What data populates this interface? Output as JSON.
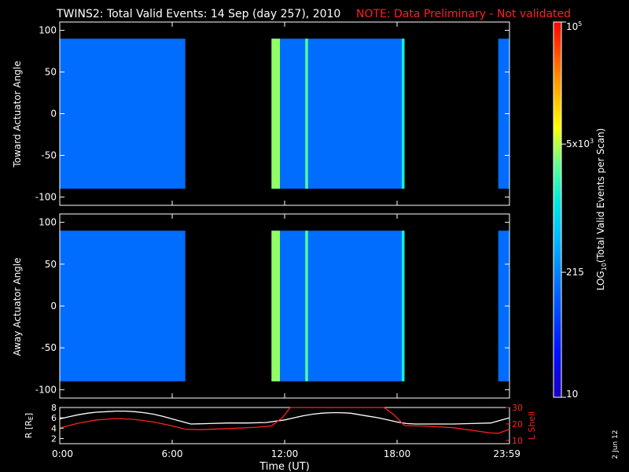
{
  "title": "TWINS2: Total Valid Events: 14 Sep (day 257), 2010",
  "note": "NOTE: Data Preliminary - Not validated",
  "datestamp": "2 Jun 12",
  "colors": {
    "note": "#ff2020",
    "white": "#ffffff",
    "lshell": "#ff2020",
    "background": "#000000"
  },
  "colorbar": {
    "label_pre": "LOG",
    "label_sub": "10",
    "label_post": "(Total Valid Events per Scan)",
    "ticks": [
      {
        "value": 10,
        "base": "10",
        "exp": ""
      },
      {
        "value": 215,
        "base": "215",
        "exp": ""
      },
      {
        "value": 5000,
        "base": "5x10",
        "exp": "3"
      },
      {
        "value": 100000,
        "base": "10",
        "exp": "5"
      }
    ],
    "range": [
      10,
      100000
    ],
    "scale": "log"
  },
  "chart_data": [
    {
      "type": "heatmap",
      "ylabel": "Toward Actuator Angle",
      "ylim": [
        -110,
        110
      ],
      "yticks": [
        "100",
        "50",
        "0",
        "-50",
        "-100"
      ],
      "ytick_values": [
        100,
        50,
        0,
        -50,
        -100
      ],
      "data_y_range": [
        -90,
        90
      ],
      "xlim": [
        0,
        24
      ],
      "data_blocks_hours": [
        [
          0.0,
          6.7
        ],
        [
          11.3,
          18.4
        ],
        [
          23.4,
          24.0
        ]
      ],
      "typical_value": 150,
      "highlights": [
        {
          "hours": [
            11.3,
            11.75
          ],
          "value": 4000
        },
        {
          "hours": [
            13.1,
            13.25
          ],
          "value": 2500
        },
        {
          "hours": [
            18.25,
            18.4
          ],
          "value": 1500
        }
      ]
    },
    {
      "type": "heatmap",
      "ylabel": "Away Actuator Angle",
      "ylim": [
        -110,
        110
      ],
      "yticks": [
        "100",
        "50",
        "0",
        "-50",
        "-100"
      ],
      "ytick_values": [
        100,
        50,
        0,
        -50,
        -100
      ],
      "data_y_range": [
        -90,
        90
      ],
      "xlim": [
        0,
        24
      ],
      "data_blocks_hours": [
        [
          0.0,
          6.7
        ],
        [
          11.3,
          18.4
        ],
        [
          23.4,
          24.0
        ]
      ],
      "typical_value": 150,
      "highlights": [
        {
          "hours": [
            11.3,
            11.75
          ],
          "value": 4000
        },
        {
          "hours": [
            13.1,
            13.25
          ],
          "value": 2500
        },
        {
          "hours": [
            18.25,
            18.4
          ],
          "value": 1500
        }
      ]
    },
    {
      "type": "line",
      "xlabel": "Time (UT)",
      "xticks": [
        "0:00",
        "6:00",
        "12:00",
        "18:00",
        "23:59"
      ],
      "xtick_hours": [
        0,
        6,
        12,
        18,
        24
      ],
      "xlim": [
        0,
        24
      ],
      "left_axis": {
        "label": "R [R",
        "label_sub": "E",
        "label_end": "]",
        "ticks": [
          "8",
          "6",
          "4",
          "2"
        ],
        "tick_values": [
          8,
          6,
          4,
          2
        ],
        "ylim": [
          1,
          8
        ]
      },
      "right_axis": {
        "label": "L Shell",
        "ticks": [
          "30",
          "20",
          "10"
        ],
        "tick_values": [
          30,
          20,
          10
        ],
        "ylim": [
          8,
          30
        ]
      },
      "series": [
        {
          "axis": "left",
          "color": "#ffffff",
          "x": [
            0,
            0.5,
            1,
            1.5,
            2,
            2.5,
            3,
            3.5,
            4,
            4.5,
            5,
            5.5,
            6,
            6.5,
            7,
            8,
            9,
            10,
            11,
            12,
            12.5,
            13,
            13.5,
            14,
            14.5,
            15,
            15.5,
            16,
            16.5,
            17,
            17.5,
            18,
            18.5,
            19,
            20,
            21,
            22,
            23,
            23.5,
            24
          ],
          "y": [
            5.8,
            6.2,
            6.6,
            6.9,
            7.1,
            7.2,
            7.3,
            7.3,
            7.2,
            7.0,
            6.7,
            6.3,
            5.8,
            5.3,
            4.8,
            4.9,
            5.0,
            5.0,
            5.1,
            5.6,
            6.0,
            6.4,
            6.7,
            6.9,
            7.0,
            7.0,
            6.9,
            6.6,
            6.3,
            6.0,
            5.6,
            5.2,
            4.9,
            4.8,
            4.8,
            4.8,
            4.9,
            5.0,
            5.5,
            6.0
          ]
        },
        {
          "axis": "right",
          "color": "#ff2020",
          "x": [
            0,
            1,
            2,
            3,
            4,
            5,
            6,
            6.7,
            7.5,
            9,
            10.5,
            11.3,
            11.9,
            12.3,
            17.3,
            17.8,
            18.4,
            19.5,
            21,
            23,
            23.4,
            24
          ],
          "y": [
            17.5,
            20.5,
            22.5,
            23.3,
            22.8,
            21.2,
            18.8,
            16.8,
            16.5,
            17.2,
            18.0,
            18.8,
            24,
            30.5,
            30.5,
            26,
            19,
            18.7,
            17.7,
            14.5,
            14.3,
            16.8
          ]
        }
      ]
    }
  ]
}
